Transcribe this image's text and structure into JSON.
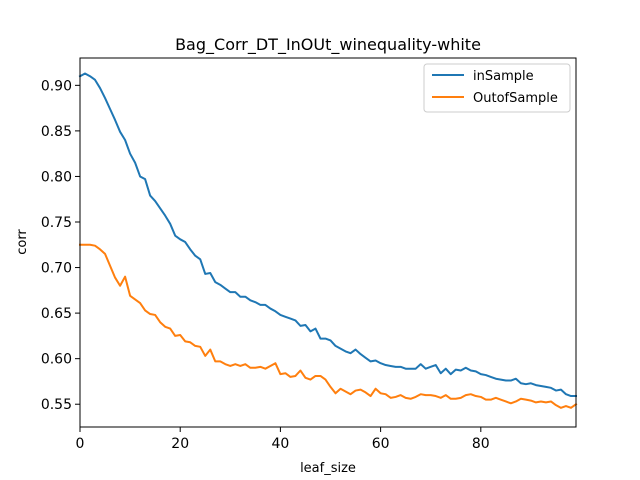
{
  "chart_data": {
    "type": "line",
    "title": "Bag_Corr_DT_InOUt_winequality-white",
    "xlabel": "leaf_size",
    "ylabel": "corr",
    "xlim": [
      0,
      99
    ],
    "ylim": [
      0.525,
      0.93
    ],
    "xticks": [
      0,
      20,
      40,
      60,
      80
    ],
    "yticks": [
      0.55,
      0.6,
      0.65,
      0.7,
      0.75,
      0.8,
      0.85,
      0.9
    ],
    "x_tick_labels": [
      "0",
      "20",
      "40",
      "60",
      "80"
    ],
    "y_tick_labels": [
      "0.55",
      "0.60",
      "0.65",
      "0.70",
      "0.75",
      "0.80",
      "0.85",
      "0.90"
    ],
    "grid": false,
    "legend_position": "top-right",
    "x": [
      0,
      1,
      2,
      3,
      4,
      5,
      6,
      7,
      8,
      9,
      10,
      11,
      12,
      13,
      14,
      15,
      16,
      17,
      18,
      19,
      20,
      21,
      22,
      23,
      24,
      25,
      26,
      27,
      28,
      29,
      30,
      31,
      32,
      33,
      34,
      35,
      36,
      37,
      38,
      39,
      40,
      41,
      42,
      43,
      44,
      45,
      46,
      47,
      48,
      49,
      50,
      51,
      52,
      53,
      54,
      55,
      56,
      57,
      58,
      59,
      60,
      61,
      62,
      63,
      64,
      65,
      66,
      67,
      68,
      69,
      70,
      71,
      72,
      73,
      74,
      75,
      76,
      77,
      78,
      79,
      80,
      81,
      82,
      83,
      84,
      85,
      86,
      87,
      88,
      89,
      90,
      91,
      92,
      93,
      94,
      95,
      96,
      97,
      98,
      99
    ],
    "series": [
      {
        "name": "inSample",
        "color": "#1f77b4",
        "values": [
          0.91,
          0.913,
          0.91,
          0.906,
          0.897,
          0.886,
          0.874,
          0.862,
          0.849,
          0.84,
          0.825,
          0.815,
          0.8,
          0.797,
          0.779,
          0.773,
          0.765,
          0.757,
          0.748,
          0.735,
          0.731,
          0.728,
          0.72,
          0.713,
          0.709,
          0.693,
          0.694,
          0.684,
          0.681,
          0.677,
          0.673,
          0.673,
          0.668,
          0.668,
          0.664,
          0.662,
          0.659,
          0.659,
          0.655,
          0.652,
          0.648,
          0.646,
          0.644,
          0.642,
          0.636,
          0.637,
          0.63,
          0.633,
          0.622,
          0.622,
          0.62,
          0.614,
          0.611,
          0.608,
          0.606,
          0.61,
          0.605,
          0.601,
          0.597,
          0.598,
          0.595,
          0.593,
          0.592,
          0.591,
          0.591,
          0.589,
          0.589,
          0.589,
          0.594,
          0.589,
          0.591,
          0.593,
          0.584,
          0.589,
          0.583,
          0.588,
          0.587,
          0.59,
          0.587,
          0.586,
          0.583,
          0.582,
          0.58,
          0.578,
          0.577,
          0.576,
          0.576,
          0.578,
          0.573,
          0.572,
          0.573,
          0.571,
          0.57,
          0.569,
          0.568,
          0.565,
          0.566,
          0.561,
          0.559,
          0.559
        ]
      },
      {
        "name": "OutofSample",
        "color": "#ff7f0e",
        "values": [
          0.725,
          0.725,
          0.725,
          0.724,
          0.72,
          0.715,
          0.702,
          0.689,
          0.68,
          0.69,
          0.669,
          0.665,
          0.661,
          0.653,
          0.649,
          0.648,
          0.64,
          0.635,
          0.633,
          0.625,
          0.626,
          0.619,
          0.618,
          0.614,
          0.613,
          0.603,
          0.61,
          0.597,
          0.597,
          0.594,
          0.592,
          0.594,
          0.592,
          0.594,
          0.59,
          0.59,
          0.591,
          0.589,
          0.592,
          0.595,
          0.583,
          0.584,
          0.58,
          0.581,
          0.587,
          0.579,
          0.577,
          0.581,
          0.581,
          0.577,
          0.569,
          0.562,
          0.567,
          0.564,
          0.561,
          0.565,
          0.566,
          0.563,
          0.559,
          0.567,
          0.562,
          0.561,
          0.557,
          0.558,
          0.56,
          0.557,
          0.556,
          0.558,
          0.561,
          0.56,
          0.56,
          0.559,
          0.557,
          0.56,
          0.556,
          0.556,
          0.557,
          0.56,
          0.561,
          0.559,
          0.558,
          0.555,
          0.555,
          0.557,
          0.555,
          0.553,
          0.551,
          0.553,
          0.556,
          0.555,
          0.554,
          0.552,
          0.553,
          0.552,
          0.553,
          0.549,
          0.546,
          0.548,
          0.546,
          0.55
        ]
      }
    ]
  }
}
